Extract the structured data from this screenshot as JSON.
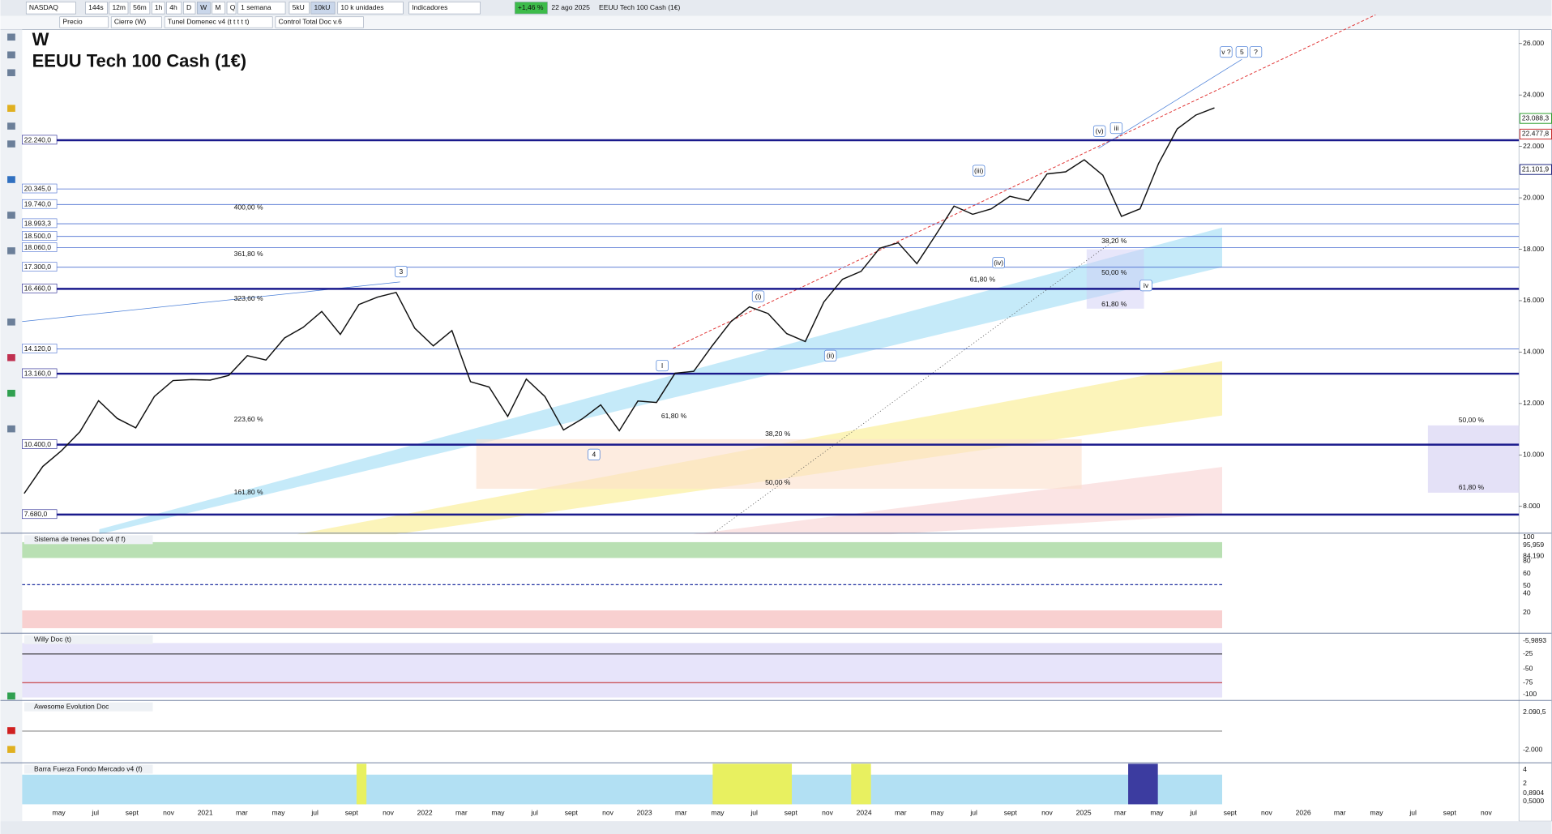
{
  "toolbar": {
    "symbol": "NASDAQ",
    "intervals": [
      "144s",
      "12m",
      "56m",
      "1h",
      "4h",
      "D",
      "W",
      "M",
      "Q"
    ],
    "period": "1 semana",
    "units": [
      "5kU",
      "10kU"
    ],
    "units_select": "10 k unidades",
    "indicators": "Indicadores",
    "change": "+1,46 %",
    "date": "22 ago 2025",
    "instrument": "EEUU Tech 100 Cash (1€)"
  },
  "legend_bar": [
    "Precio",
    "Cierre (W)",
    "Tunel Domenec v4 (t t t t t)",
    "Control Total Doc v.6"
  ],
  "chart": {
    "period": "W",
    "title": "EEUU Tech 100 Cash (1€)",
    "ylim": [
      7300,
      26540
    ],
    "yticks": [
      {
        "value": 26000,
        "label": "26.000"
      },
      {
        "value": 24000,
        "label": "24.000"
      },
      {
        "value": 22000,
        "label": "22.000"
      },
      {
        "value": 20000,
        "label": "20.000"
      },
      {
        "value": 18000,
        "label": "18.000"
      },
      {
        "value": 16000,
        "label": "16.000"
      },
      {
        "value": 14000,
        "label": "14.000"
      },
      {
        "value": 12000,
        "label": "12.000"
      },
      {
        "value": 10000,
        "label": "10.000"
      },
      {
        "value": 8000,
        "label": "8.000"
      }
    ],
    "levels": [
      {
        "value": 22240,
        "label": "22.240,0",
        "style": "major"
      },
      {
        "value": 20345,
        "label": "20.345,0",
        "style": "minor"
      },
      {
        "value": 19740,
        "label": "19.740,0",
        "style": "minor"
      },
      {
        "value": 18993.3,
        "label": "18.993,3",
        "style": "minor"
      },
      {
        "value": 18500,
        "label": "18.500,0",
        "style": "minor"
      },
      {
        "value": 18060,
        "label": "18.060,0",
        "style": "minor"
      },
      {
        "value": 17300,
        "label": "17.300,0",
        "style": "minor"
      },
      {
        "value": 16460,
        "label": "16.460,0",
        "style": "major"
      },
      {
        "value": 14120,
        "label": "14.120,0",
        "style": "minor"
      },
      {
        "value": 13160,
        "label": "13.160,0",
        "style": "major"
      },
      {
        "value": 10400,
        "label": "10.400,0",
        "style": "major"
      },
      {
        "value": 7680,
        "label": "7.680,0",
        "style": "major"
      }
    ],
    "current_values": [
      {
        "value": 23088.3,
        "label": "23.088,3",
        "color": "#2a9d2a"
      },
      {
        "value": 22477.8,
        "label": "22.477,8",
        "color": "#c62828"
      },
      {
        "value": 21101.9,
        "label": "21.101,9",
        "color": "#1a237e"
      }
    ],
    "closes": [
      8500,
      9550,
      10160,
      10900,
      12110,
      11420,
      11050,
      12270,
      12890,
      12930,
      12910,
      13090,
      13860,
      13690,
      14550,
      14960,
      15580,
      14690,
      15850,
      16140,
      16320,
      14930,
      14240,
      14840,
      12850,
      12640,
      11500,
      12950,
      12270,
      10970,
      11400,
      11950,
      10940,
      12100,
      12040,
      13180,
      13250,
      14250,
      15180,
      15760,
      15500,
      14720,
      14410,
      15950,
      16830,
      17140,
      18040,
      18250,
      17440,
      18540,
      19680,
      19360,
      19570,
      20060,
      19890,
      20930,
      21010,
      21480,
      20880,
      19280,
      19570,
      21340,
      22680,
      23220,
      23500
    ],
    "price_color": "#111111",
    "annotations": [
      "400,00 %",
      "361,80 %",
      "323,60 %",
      "223,60 %",
      "161,80 %",
      "38,20 %",
      "50,00 %",
      "61,80 %",
      "38,20 %",
      "50,00 %",
      "61,80 %",
      "61,80 %",
      "50,00 %",
      "61,80 %",
      "3",
      "4",
      "I",
      "(i)",
      "(ii)",
      "(iii)",
      "(iv)",
      "(v)",
      "iii",
      "iv",
      "v ?",
      "5",
      "?"
    ]
  },
  "time_axis": [
    "may",
    "jul",
    "sept",
    "nov",
    "2021",
    "mar",
    "may",
    "jul",
    "sept",
    "nov",
    "2022",
    "mar",
    "may",
    "jul",
    "sept",
    "nov",
    "2023",
    "mar",
    "may",
    "jul",
    "sept",
    "nov",
    "2024",
    "mar",
    "may",
    "jul",
    "sept",
    "nov",
    "2025",
    "mar",
    "may",
    "jul",
    "sept",
    "nov",
    "2026",
    "mar",
    "may",
    "jul",
    "sept",
    "nov"
  ],
  "panels": [
    {
      "title": "Sistema de trenes Doc v4 (f f)",
      "ticks": [
        "100",
        "95,959",
        "84,190",
        "80",
        "60",
        "50",
        "40",
        "20"
      ]
    },
    {
      "title": "Willy Doc (t)",
      "ticks": [
        "-5,9893",
        "-25",
        "-50",
        "-75",
        "-100"
      ]
    },
    {
      "title": "Awesome Evolution Doc",
      "ticks": [
        "2.090,5",
        "-2.000"
      ]
    },
    {
      "title": "Barra Fuerza Fondo Mercado v4 (f)",
      "ticks": [
        "4",
        "2",
        "0,8904",
        "0,5000"
      ]
    }
  ]
}
